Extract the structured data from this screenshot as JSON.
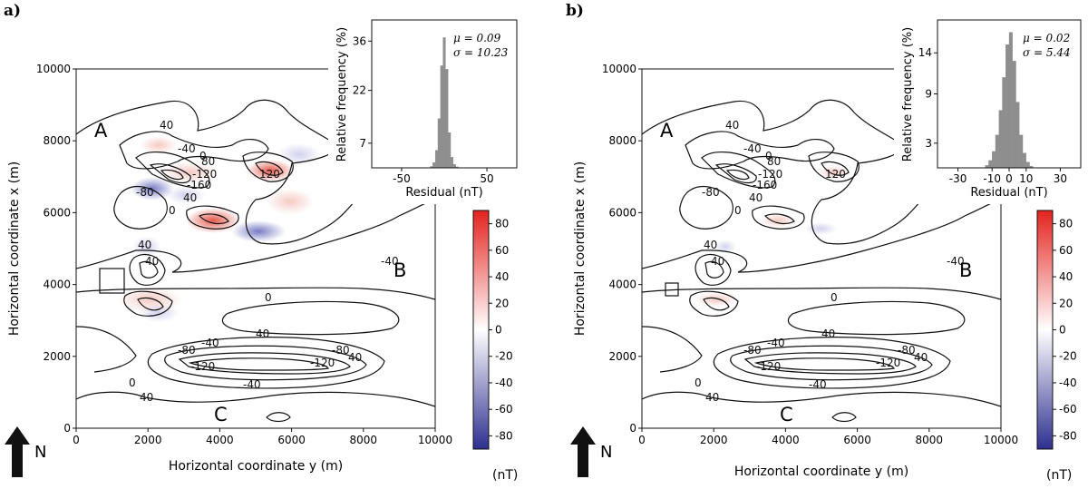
{
  "chart_data": [
    {
      "panel": "a)",
      "type": "heatmap",
      "xlabel": "Horizontal coordinate y (m)",
      "ylabel": "Horizontal coordinate x (m)",
      "xlim": [
        0,
        10000
      ],
      "ylim": [
        0,
        10000
      ],
      "xticks": [
        "0",
        "2000",
        "4000",
        "6000",
        "8000",
        "10000"
      ],
      "yticks": [
        "0",
        "2000",
        "4000",
        "6000",
        "8000",
        "10000"
      ],
      "region_labels": [
        "A",
        "B",
        "C"
      ],
      "north_label": "N",
      "contour_labels": [
        "40",
        "-40",
        "0",
        "-80",
        "-120",
        "40",
        "80",
        "-160",
        "120",
        "-40",
        "0",
        "40",
        "0",
        "40",
        "40",
        "-40",
        "-80",
        "-120",
        "-120",
        "-80",
        "40",
        "0",
        "-40",
        "40"
      ],
      "colorbar": {
        "ticks": [
          "80",
          "60",
          "40",
          "20",
          "0",
          "-20",
          "-40",
          "-60",
          "-80"
        ],
        "range": [
          -90,
          90
        ],
        "colors": [
          "#2e2f8f",
          "#ffffff",
          "#e4231e"
        ],
        "unit": "(nT)"
      },
      "inset": {
        "type": "histogram",
        "xlabel": "Residual (nT)",
        "ylabel": "Relative frequency (%)",
        "xticks": [
          "-50",
          "50"
        ],
        "yticks": [
          "36",
          "22",
          "7"
        ],
        "mu_text": "μ = 0.09",
        "sigma_text": "σ = 10.23",
        "bars": [
          {
            "x": -15,
            "y": 0.4
          },
          {
            "x": -12,
            "y": 1.5
          },
          {
            "x": -9,
            "y": 5
          },
          {
            "x": -6,
            "y": 14
          },
          {
            "x": -3,
            "y": 29
          },
          {
            "x": 0,
            "y": 37
          },
          {
            "x": 3,
            "y": 28
          },
          {
            "x": 6,
            "y": 10
          },
          {
            "x": 9,
            "y": 3
          },
          {
            "x": 12,
            "y": 1
          },
          {
            "x": 15,
            "y": 0.3
          }
        ],
        "bar_width": 3,
        "xlim": [
          -85,
          85
        ],
        "ylim": [
          0,
          42
        ]
      }
    },
    {
      "panel": "b)",
      "type": "heatmap",
      "xlabel": "Horizontal coordinate y (m)",
      "ylabel": "Horizontal coordinate x (m)",
      "xlim": [
        0,
        10000
      ],
      "ylim": [
        0,
        10000
      ],
      "xticks": [
        "0",
        "2000",
        "4000",
        "6000",
        "8000",
        "10000"
      ],
      "yticks": [
        "0",
        "2000",
        "4000",
        "6000",
        "8000",
        "10000"
      ],
      "region_labels": [
        "A",
        "B",
        "C"
      ],
      "north_label": "N",
      "contour_labels": [
        "40",
        "-40",
        "0",
        "-80",
        "-120",
        "40",
        "80",
        "-160",
        "120",
        "-40",
        "0",
        "40",
        "0",
        "40",
        "40",
        "-40",
        "-80",
        "-120",
        "-120",
        "-80",
        "40",
        "0",
        "-40",
        "40"
      ],
      "colorbar": {
        "ticks": [
          "80",
          "60",
          "40",
          "20",
          "0",
          "-20",
          "-40",
          "-60",
          "-80"
        ],
        "range": [
          -90,
          90
        ],
        "colors": [
          "#2e2f8f",
          "#ffffff",
          "#e4231e"
        ],
        "unit": "(nT)"
      },
      "inset": {
        "type": "histogram",
        "xlabel": "Residual (nT)",
        "ylabel": "Relative frequency (%)",
        "xticks": [
          "-30",
          "-10",
          "0",
          "10",
          "30"
        ],
        "yticks": [
          "14",
          "9",
          "3"
        ],
        "mu_text": "μ = 0.02",
        "sigma_text": "σ = 5.44",
        "bars": [
          {
            "x": -13,
            "y": 0.3
          },
          {
            "x": -11,
            "y": 0.9
          },
          {
            "x": -9,
            "y": 2
          },
          {
            "x": -7,
            "y": 4
          },
          {
            "x": -5,
            "y": 7
          },
          {
            "x": -3,
            "y": 11
          },
          {
            "x": -1,
            "y": 15
          },
          {
            "x": 1,
            "y": 16.5
          },
          {
            "x": 3,
            "y": 13
          },
          {
            "x": 5,
            "y": 8
          },
          {
            "x": 7,
            "y": 4
          },
          {
            "x": 9,
            "y": 1.8
          },
          {
            "x": 11,
            "y": 0.7
          },
          {
            "x": 13,
            "y": 0.2
          }
        ],
        "bar_width": 2,
        "xlim": [
          -42,
          42
        ],
        "ylim": [
          0,
          18
        ]
      }
    }
  ]
}
